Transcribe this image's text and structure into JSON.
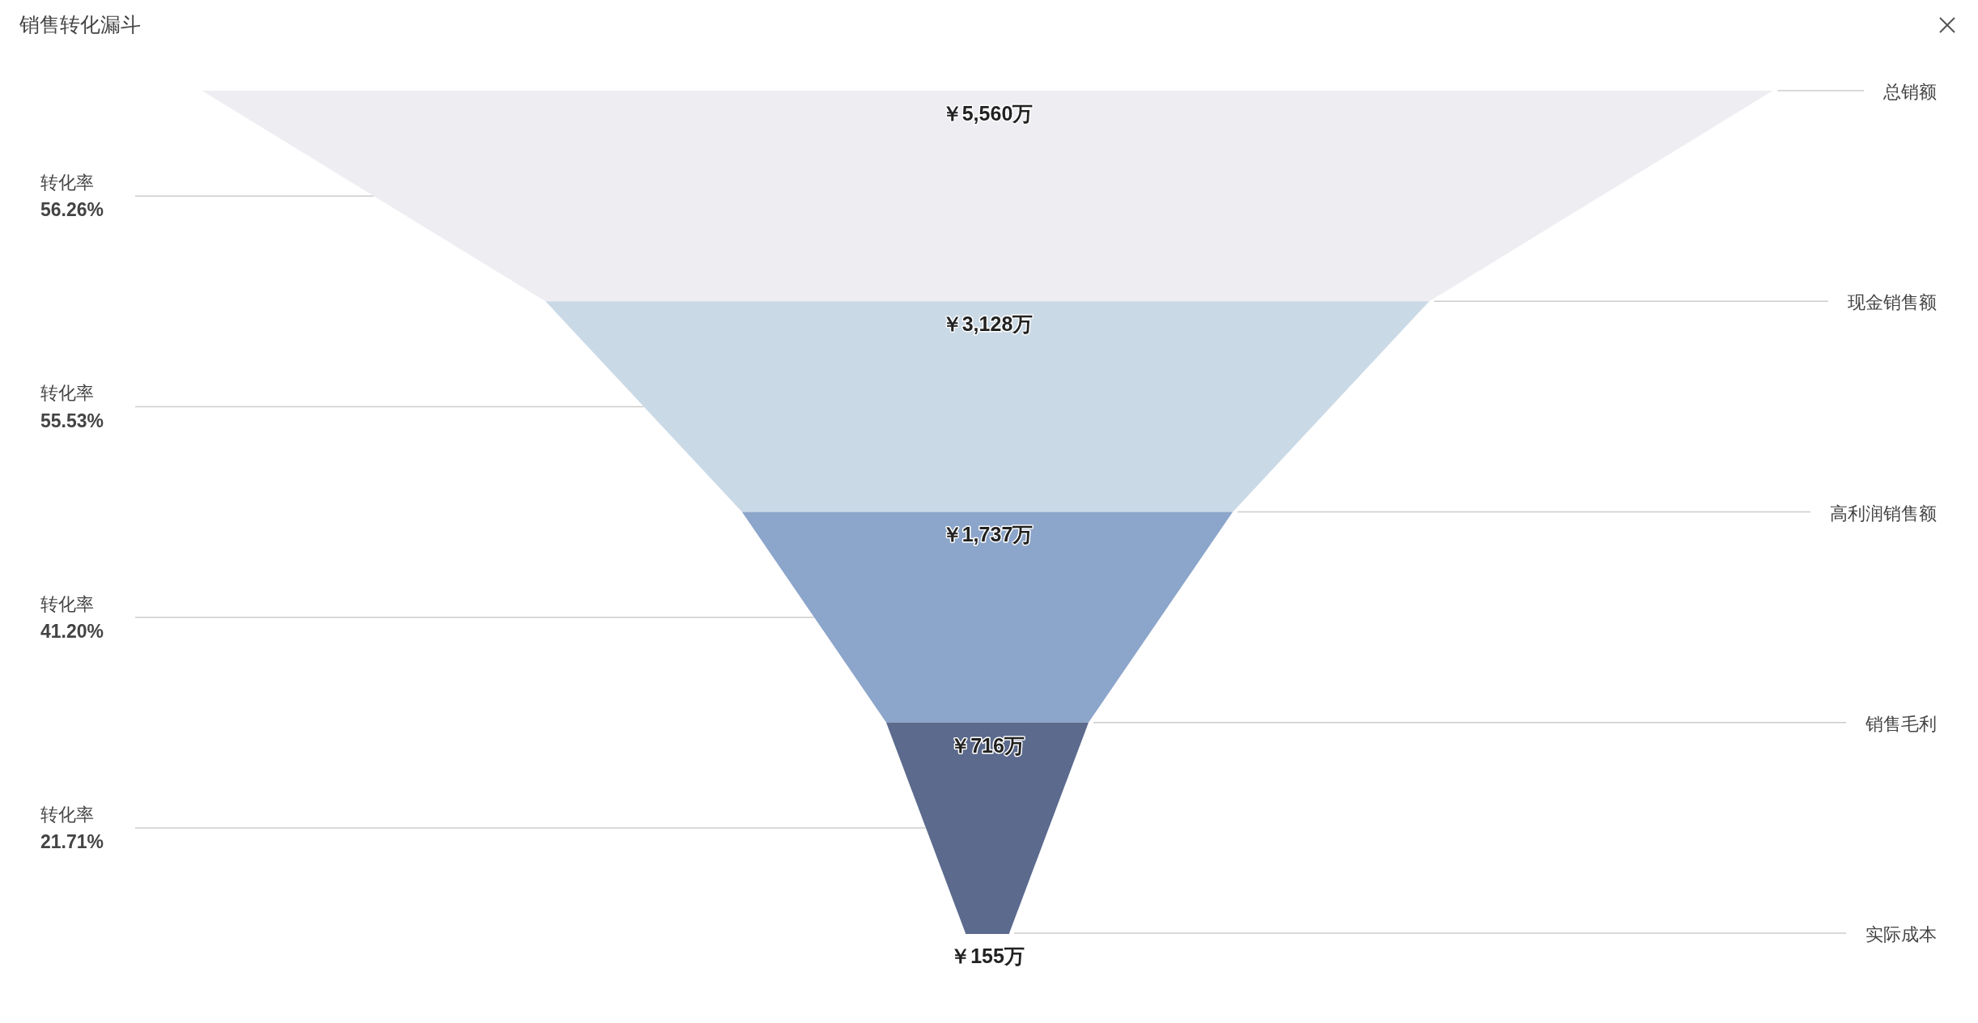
{
  "chart_data": {
    "type": "other",
    "title": "销售转化漏斗",
    "categories": [
      "总销额",
      "现金销售额",
      "高利润销售额",
      "销售毛利",
      "实际成本"
    ],
    "values": [
      5560,
      3128,
      1737,
      716,
      155
    ],
    "value_labels": [
      "￥5,560万",
      "￥3,128万",
      "￥1,737万",
      "￥716万",
      "￥155万"
    ],
    "colors": [
      "#ededf2",
      "#cad9e6",
      "#8ca5ca",
      "#5b6a8d",
      "#5b6a8d"
    ],
    "annotations": [
      "转化率\n56.26%",
      "转化率\n55.53%",
      "转化率\n41.20%",
      "转化率\n21.71%"
    ]
  }
}
